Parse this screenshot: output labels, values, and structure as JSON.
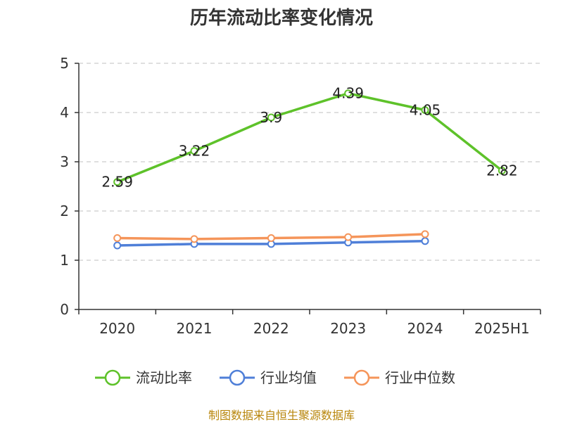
{
  "chart_data": {
    "type": "line",
    "title": "历年流动比率变化情况",
    "categories": [
      "2020",
      "2021",
      "2022",
      "2023",
      "2024",
      "2025H1"
    ],
    "ylim": [
      0,
      5
    ],
    "yticks": [
      "0",
      "1",
      "2",
      "3",
      "4",
      "5"
    ],
    "grid": true,
    "legend_position": "bottom",
    "series": [
      {
        "name": "流动比率",
        "color": "#5ec22a",
        "values": [
          2.59,
          3.22,
          3.9,
          4.39,
          4.05,
          2.82
        ],
        "labels": [
          "2.59",
          "3.22",
          "3.9",
          "4.39",
          "4.05",
          "2.82"
        ]
      },
      {
        "name": "行业均值",
        "color": "#4f7fd8",
        "values": [
          1.3,
          1.33,
          1.33,
          1.36,
          1.39,
          null
        ]
      },
      {
        "name": "行业中位数",
        "color": "#f5955a",
        "values": [
          1.45,
          1.43,
          1.45,
          1.47,
          1.53,
          null
        ]
      }
    ]
  },
  "source": "制图数据来自恒生聚源数据库"
}
